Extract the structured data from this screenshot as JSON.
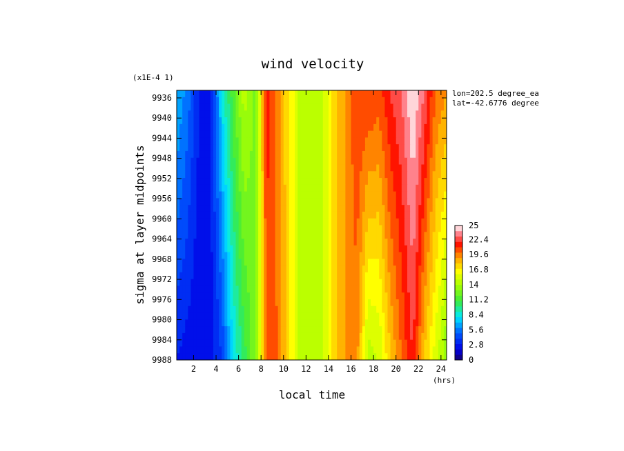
{
  "chart_data": {
    "type": "heatmap",
    "title": "wind velocity",
    "xlabel": "local time",
    "ylabel": "sigma at layer midpoints",
    "x_unit": "(hrs)",
    "y_scale_note": "(x1E-4 1)",
    "annotations": [
      "lon=202.5 degree_ea",
      "lat=-42.6776 degree"
    ],
    "x_ticks": [
      "2",
      "4",
      "6",
      "8",
      "10",
      "12",
      "14",
      "16",
      "18",
      "20",
      "22",
      "24"
    ],
    "x_tick_values": [
      2,
      4,
      6,
      8,
      10,
      12,
      14,
      16,
      18,
      20,
      22,
      24
    ],
    "xlim": [
      0.5,
      24.5
    ],
    "y_ticks": [
      "9936",
      "9940",
      "9944",
      "9948",
      "9952",
      "9956",
      "9960",
      "9964",
      "9968",
      "9972",
      "9976",
      "9980",
      "9984",
      "9988"
    ],
    "y_tick_values": [
      9936,
      9940,
      9944,
      9948,
      9952,
      9956,
      9960,
      9964,
      9968,
      9972,
      9976,
      9980,
      9984,
      9988
    ],
    "ylim": [
      9934.5,
      9988
    ],
    "colorbar": {
      "min": 0,
      "max": 25,
      "labels": [
        "25",
        "22.4",
        "19.6",
        "16.8",
        "14",
        "11.2",
        "8.4",
        "5.6",
        "2.8",
        "0"
      ],
      "label_values": [
        25,
        22.4,
        19.6,
        16.8,
        14,
        11.2,
        8.4,
        5.6,
        2.8,
        0
      ]
    },
    "y_levels": [
      9935,
      9988
    ],
    "x_hours": [
      0.5,
      1.5,
      2.5,
      3.5,
      4.5,
      5.5,
      6.5,
      7.5,
      8.5,
      9.5,
      10.5,
      11.5,
      12.5,
      13.5,
      14.5,
      15.5,
      16.5,
      17.5,
      18.5,
      19.5,
      20.5,
      21.5,
      22.5,
      23.5,
      24.5
    ],
    "values_top": [
      7.0,
      5.5,
      3.0,
      2.8,
      8.0,
      11.5,
      14.5,
      12.5,
      21.5,
      19.5,
      17.0,
      14.5,
      14.5,
      15.0,
      17.5,
      19.0,
      21.0,
      21.0,
      20.5,
      22.0,
      23.0,
      25.0,
      23.0,
      20.0,
      19.0
    ],
    "values_bottom": [
      3.0,
      2.5,
      2.0,
      2.5,
      4.0,
      8.0,
      10.5,
      13.0,
      20.5,
      20.0,
      17.0,
      14.5,
      14.5,
      15.0,
      17.5,
      19.0,
      19.5,
      14.5,
      15.0,
      18.0,
      20.0,
      22.0,
      18.0,
      15.5,
      13.0
    ]
  }
}
